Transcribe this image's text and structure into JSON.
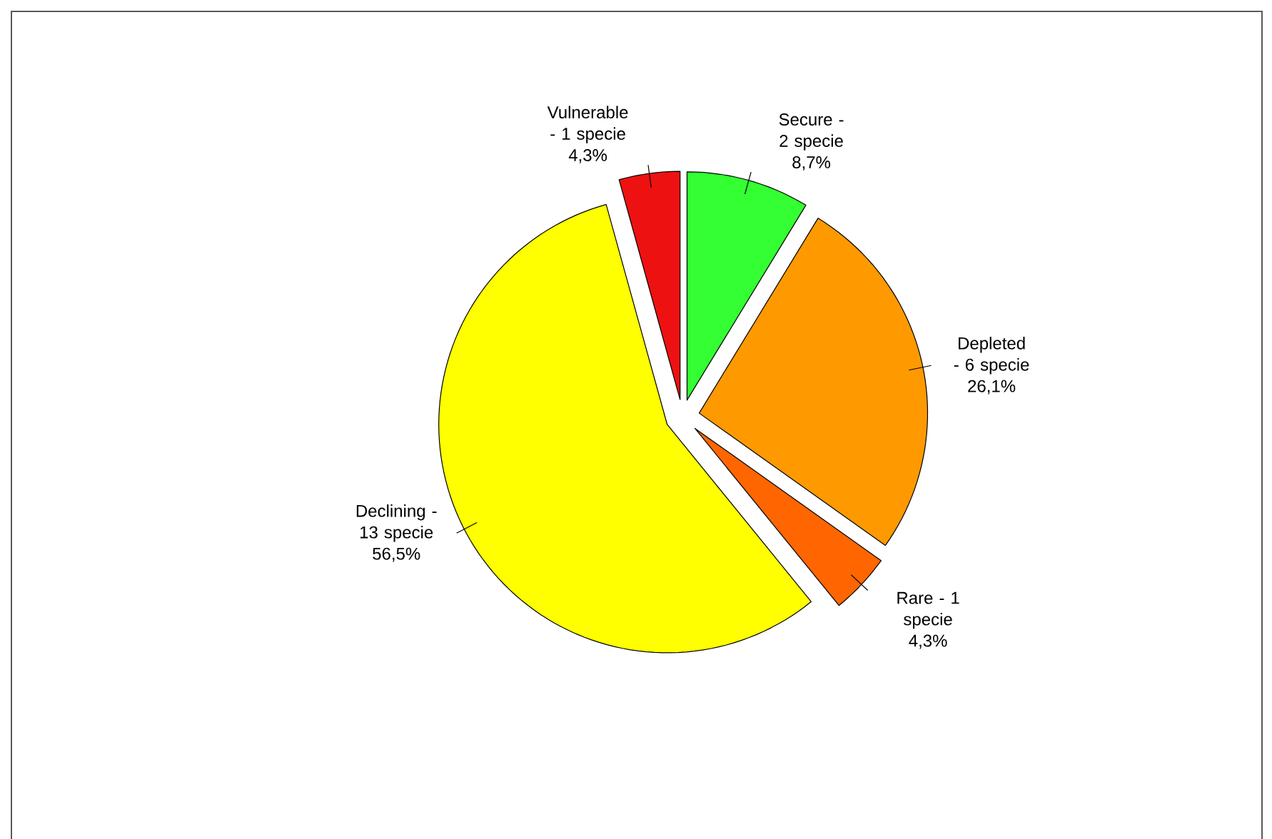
{
  "chart_data": {
    "type": "pie",
    "categories": [
      "Secure - 2 specie",
      "Depleted - 6 specie",
      "Rare - 1 specie",
      "Declining - 13 specie",
      "Vulnerable - 1 specie"
    ],
    "values": [
      8.7,
      26.1,
      4.3,
      56.5,
      4.3
    ],
    "value_labels": [
      "8,7%",
      "26,1%",
      "4,3%",
      "56,5%",
      "4,3%"
    ],
    "colors": [
      "#33ff33",
      "#ff9900",
      "#ff6600",
      "#ffff00",
      "#ee1111"
    ]
  }
}
